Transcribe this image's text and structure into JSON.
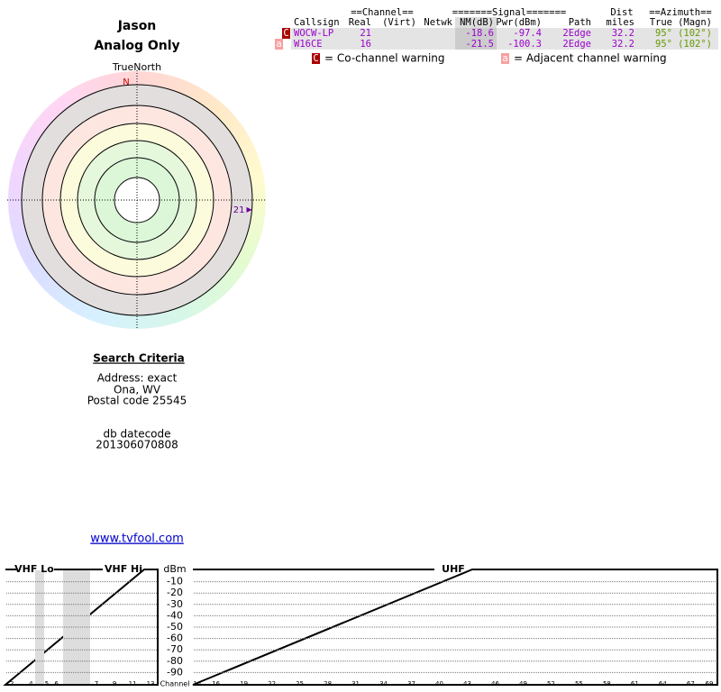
{
  "header": {
    "title": "Jason",
    "subtitle": "Analog Only"
  },
  "polar": {
    "north_label": "TrueNorth",
    "n": "N"
  },
  "table": {
    "groups": [
      "==Channel==",
      "=======Signal=======",
      "Dist",
      "==Azimuth=="
    ],
    "columns": [
      "Callsign",
      "Real",
      "(Virt)",
      "Netwk",
      "NM(dB)",
      "Pwr(dBm)",
      "Path",
      "miles",
      "True",
      "(Magn)"
    ],
    "rows": [
      {
        "flag": "C",
        "callsign": "WOCW-LP",
        "real": "21",
        "nm": "-18.6",
        "pwr": "-97.4",
        "path": "2Edge",
        "dist": "32.2",
        "true": "95°",
        "magn": "(102°)"
      },
      {
        "flag": "a",
        "callsign": "W16CE",
        "real": "16",
        "nm": "-21.5",
        "pwr": "-100.3",
        "path": "2Edge",
        "dist": "32.2",
        "true": "95°",
        "magn": "(102°)"
      }
    ],
    "legend": [
      {
        "flag": "C",
        "text": "= Co-channel warning"
      },
      {
        "flag": "a",
        "text": "= Adjacent channel warning"
      }
    ]
  },
  "search": {
    "heading": "Search Criteria",
    "lines": [
      "Address: exact",
      "Ona, WV",
      "Postal code 25545"
    ],
    "db_label": "db datecode",
    "db_value": "201306070808",
    "link": "www.tvfool.com"
  },
  "spectrum": {
    "vhf_lo": "VHF Lo",
    "vhf_hi": "VHF Hi",
    "unit": "dBm",
    "uhf": "UHF",
    "channel_label": "Channel",
    "yticks": [
      -10,
      -20,
      -30,
      -40,
      -50,
      -60,
      -70,
      -80,
      -90
    ],
    "ylim": [
      0,
      -100
    ],
    "vhf_ticks": [
      2,
      4,
      5,
      6,
      7,
      9,
      11,
      13
    ],
    "uhf_ticks": [
      14,
      16,
      19,
      22,
      25,
      28,
      31,
      34,
      37,
      40,
      43,
      46,
      49,
      52,
      55,
      58,
      61,
      64,
      67,
      69
    ]
  }
}
